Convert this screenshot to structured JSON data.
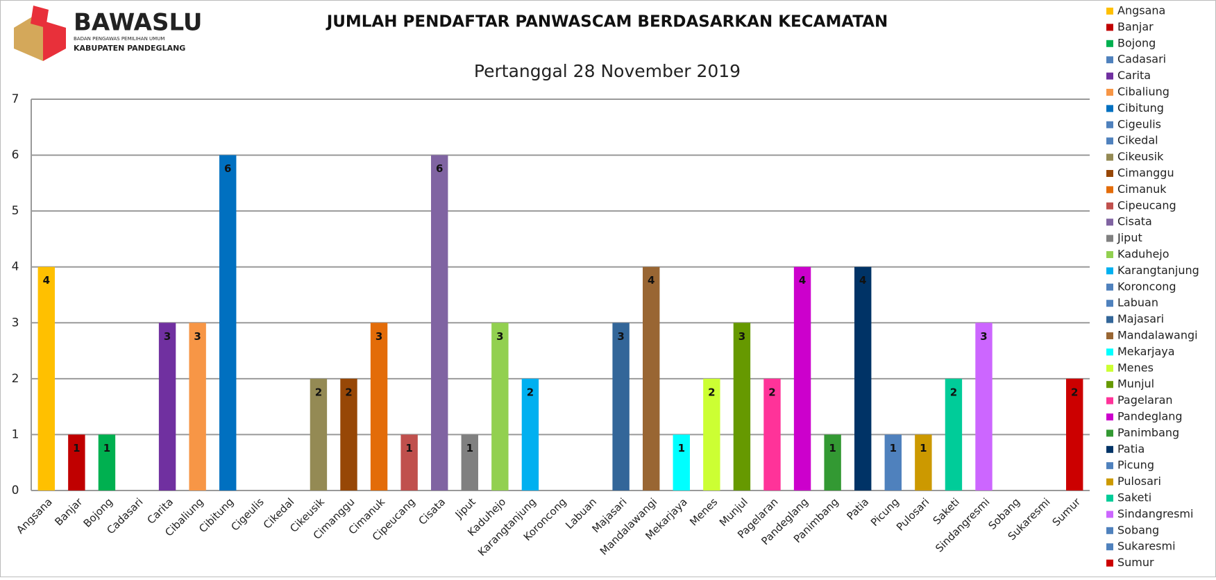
{
  "logo": {
    "name": "BAWASLU",
    "subtitle": "BADAN PENGAWAS PEMILIHAN UMUM",
    "region": "KABUPATEN PANDEGLANG"
  },
  "chart_data": {
    "type": "bar",
    "title": "JUMLAH PENDAFTAR PANWASCAM BERDASARKAN KECAMATAN",
    "subtitle": "Pertanggal 28 November 2019",
    "categories": [
      "Angsana",
      "Banjar",
      "Bojong",
      "Cadasari",
      "Carita",
      "Cibaliung",
      "Cibitung",
      "Cigeulis",
      "Cikedal",
      "Cikeusik",
      "Cimanggu",
      "Cimanuk",
      "Cipeucang",
      "Cisata",
      "Jiput",
      "Kaduhejo",
      "Karangtanjung",
      "Koroncong",
      "Labuan",
      "Majasari",
      "Mandalawangi",
      "Mekarjaya",
      "Menes",
      "Munjul",
      "Pagelaran",
      "Pandeglang",
      "Panimbang",
      "Patia",
      "Picung",
      "Pulosari",
      "Saketi",
      "Sindangresmi",
      "Sobang",
      "Sukaresmi",
      "Sumur"
    ],
    "values": [
      4,
      1,
      1,
      0,
      3,
      3,
      6,
      0,
      0,
      2,
      2,
      3,
      1,
      6,
      1,
      3,
      2,
      0,
      0,
      3,
      4,
      1,
      2,
      3,
      2,
      4,
      1,
      4,
      1,
      1,
      2,
      3,
      0,
      0,
      2
    ],
    "colors": [
      "#FFC000",
      "#C00000",
      "#00B050",
      "#4F81BD",
      "#7030A0",
      "#F79646",
      "#0070C0",
      "#4F81BD",
      "#4F81BD",
      "#948A54",
      "#974706",
      "#E36C09",
      "#C0504D",
      "#8064A2",
      "#808080",
      "#92D050",
      "#00B0F0",
      "#4F81BD",
      "#4F81BD",
      "#336699",
      "#996633",
      "#00FFFF",
      "#CCFF33",
      "#669900",
      "#FF3399",
      "#CC00CC",
      "#339933",
      "#003366",
      "#4F81BD",
      "#CC9900",
      "#00CC99",
      "#CC66FF",
      "#4F81BD",
      "#4F81BD",
      "#CC0000"
    ],
    "ylim": [
      0,
      7
    ],
    "yticks": [
      0,
      1,
      2,
      3,
      4,
      5,
      6,
      7
    ],
    "grid": true,
    "legend": "right"
  }
}
